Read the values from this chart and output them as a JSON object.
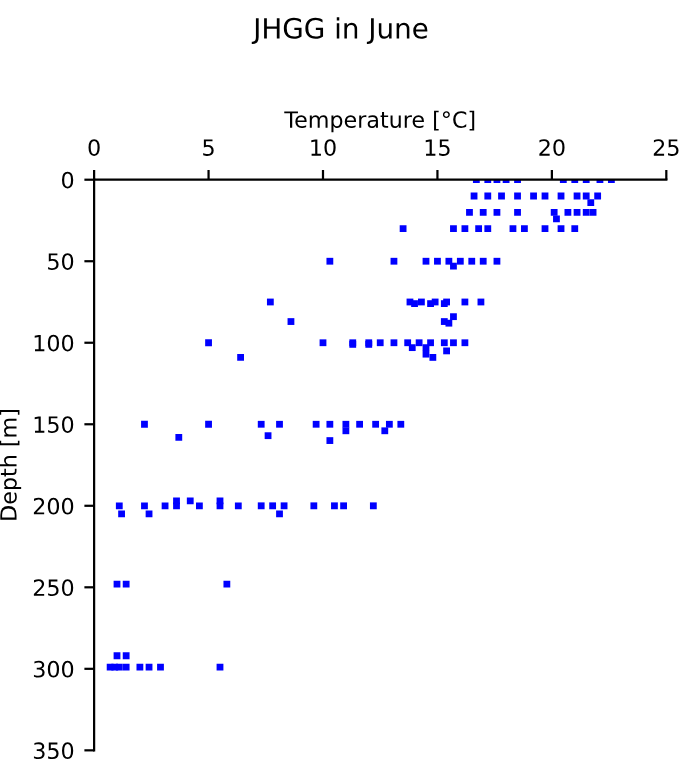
{
  "chart_data": {
    "type": "scatter",
    "title": "JHGG in June",
    "xlabel": "Temperature [°C]",
    "ylabel": "Depth [m]",
    "xlim": [
      0,
      25
    ],
    "ylim": [
      350,
      0
    ],
    "xticks": [
      0,
      5,
      10,
      15,
      20,
      25
    ],
    "yticks": [
      0,
      50,
      100,
      150,
      200,
      250,
      300,
      350
    ],
    "marker": "square",
    "grid": false,
    "legend": false,
    "series": [
      {
        "color": "#0000ff",
        "x": [
          16.7,
          17.2,
          17.6,
          18.0,
          18.5,
          20.5,
          21.0,
          21.5,
          22.1,
          22.6,
          16.6,
          17.2,
          17.8,
          18.5,
          19.2,
          19.7,
          20.4,
          21.1,
          21.5,
          22.0,
          21.7,
          16.4,
          17.0,
          17.6,
          18.5,
          20.1,
          20.7,
          21.1,
          21.5,
          21.8,
          20.2,
          13.5,
          15.7,
          16.2,
          16.8,
          17.2,
          18.3,
          18.8,
          19.7,
          20.4,
          21.0,
          10.3,
          13.1,
          14.5,
          15.0,
          15.5,
          16.0,
          16.5,
          17.0,
          17.6,
          15.7,
          7.7,
          13.8,
          14.3,
          14.9,
          15.4,
          16.2,
          16.9,
          14.0,
          14.7,
          15.3,
          15.7,
          8.6,
          15.3,
          15.5,
          5.0,
          10.0,
          11.3,
          12.0,
          12.5,
          13.1,
          13.7,
          14.2,
          14.7,
          15.3,
          15.7,
          16.2,
          11.3,
          12.0,
          13.9,
          14.5,
          15.4,
          14.5,
          6.4,
          14.8,
          2.2,
          5.0,
          7.3,
          8.1,
          9.7,
          10.3,
          11.0,
          11.6,
          12.3,
          12.9,
          13.4,
          3.7,
          7.6,
          10.3,
          11.0,
          12.7,
          1.1,
          2.2,
          3.1,
          3.6,
          4.6,
          5.5,
          6.3,
          7.3,
          7.8,
          8.3,
          9.6,
          10.5,
          10.9,
          12.2,
          3.6,
          4.2,
          5.5,
          1.2,
          2.4,
          8.1,
          1.0,
          1.4,
          5.8,
          0.7,
          0.9,
          1.1,
          1.4,
          2.0,
          2.4,
          2.9,
          1.0,
          1.4,
          5.5
        ],
        "values": [
          0,
          0,
          0,
          0,
          0,
          0,
          0,
          0,
          0,
          0,
          10,
          10,
          10,
          10,
          10,
          10,
          10,
          10,
          10,
          10,
          14,
          20,
          20,
          20,
          20,
          20,
          20,
          20,
          20,
          20,
          24,
          30,
          30,
          30,
          30,
          30,
          30,
          30,
          30,
          30,
          30,
          50,
          50,
          50,
          50,
          50,
          50,
          50,
          50,
          50,
          53,
          75,
          75,
          75,
          75,
          75,
          75,
          75,
          76,
          76,
          76,
          84,
          87,
          87,
          88,
          100,
          100,
          100,
          100,
          100,
          100,
          100,
          100,
          100,
          100,
          100,
          100,
          101,
          101,
          103,
          103,
          105,
          107,
          109,
          109,
          150,
          150,
          150,
          150,
          150,
          150,
          150,
          150,
          150,
          150,
          150,
          158,
          157,
          160,
          154,
          154,
          200,
          200,
          200,
          200,
          200,
          200,
          200,
          200,
          200,
          200,
          200,
          200,
          200,
          200,
          197,
          197,
          197,
          205,
          205,
          205,
          248,
          248,
          248,
          299,
          299,
          299,
          299,
          299,
          299,
          299,
          292,
          292,
          299
        ]
      }
    ]
  }
}
